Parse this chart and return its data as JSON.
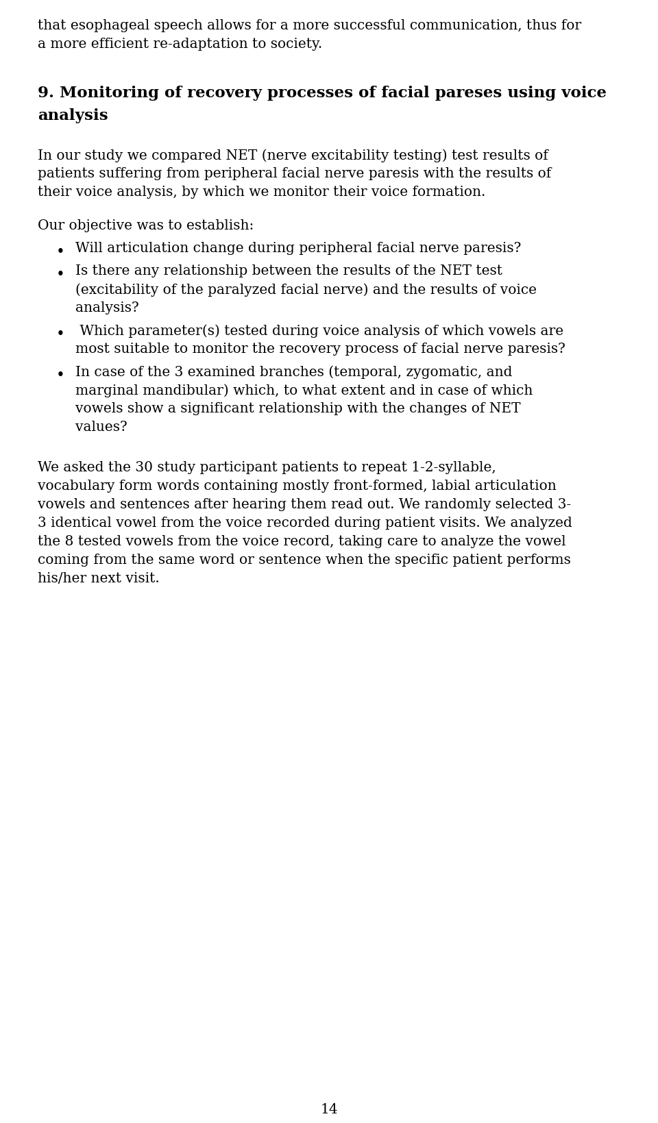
{
  "background_color": "#ffffff",
  "text_color": "#000000",
  "page_number": "14",
  "font_family": "DejaVu Serif",
  "line1": "that esophageal speech allows for a more successful communication, thus for",
  "line2": "a more efficient re-adaptation to society.",
  "section_title_line1": "9. Monitoring of recovery processes of facial pareses using voice",
  "section_title_line2": "analysis",
  "para1_lines": [
    "In our study we compared NET (nerve excitability testing) test results of",
    "patients suffering from peripheral facial nerve paresis with the results of",
    "their voice analysis, by which we monitor their voice formation."
  ],
  "objective_intro": "Our objective was to establish:",
  "bullet1": "Will articulation change during peripheral facial nerve paresis?",
  "bullet2_lines": [
    "Is there any relationship between the results of the NET test",
    "(excitability of the paralyzed facial nerve) and the results of voice",
    "analysis?"
  ],
  "bullet3_lines": [
    " Which parameter(s) tested during voice analysis of which vowels are",
    "most suitable to monitor the recovery process of facial nerve paresis?"
  ],
  "bullet4_lines": [
    "In case of the 3 examined branches (temporal, zygomatic, and",
    "marginal mandibular) which, to what extent and in case of which",
    "vowels show a significant relationship with the changes of NET",
    "values?"
  ],
  "para2_lines": [
    "We asked the 30 study participant patients to repeat 1-2-syllable,",
    "vocabulary form words containing mostly front-formed, labial articulation",
    "vowels and sentences after hearing them read out. We randomly selected 3-",
    "3 identical vowel from the voice recorded during patient visits. We analyzed",
    "the 8 tested vowels from the voice record, taking care to analyze the vowel",
    "coming from the same word or sentence when the specific patient performs",
    "his/her next visit."
  ]
}
